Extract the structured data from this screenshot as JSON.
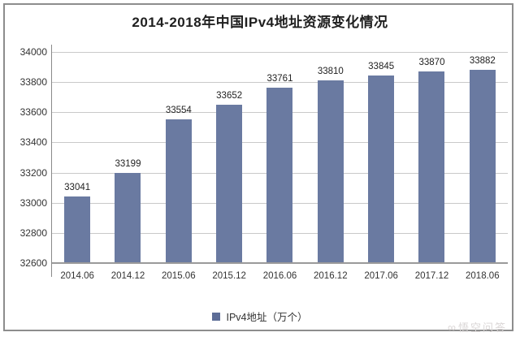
{
  "chart": {
    "legend_label": "IPv4地址（万个）",
    "watermark_logo": "∞",
    "watermark_text": "悟空问答"
  },
  "chart_data": {
    "type": "bar",
    "title": "2014-2018年中国IPv4地址资源变化情况",
    "categories": [
      "2014.06",
      "2014.12",
      "2015.06",
      "2015.12",
      "2016.06",
      "2016.12",
      "2017.06",
      "2017.12",
      "2018.06"
    ],
    "values": [
      33041,
      33199,
      33554,
      33652,
      33761,
      33810,
      33845,
      33870,
      33882
    ],
    "series_name": "IPv4地址（万个）",
    "xlabel": "",
    "ylabel": "",
    "ylim": [
      32600,
      34000
    ],
    "yticks": [
      32600,
      32800,
      33000,
      33200,
      33400,
      33600,
      33800,
      34000
    ],
    "grid": true,
    "data_labels": true,
    "legend_position": "bottom",
    "bar_color": "#6a7aa1",
    "legend_swatch_color": "#5d6d97",
    "gridline_color": "#c9c9c9",
    "axis_color": "#8a8a8a"
  }
}
